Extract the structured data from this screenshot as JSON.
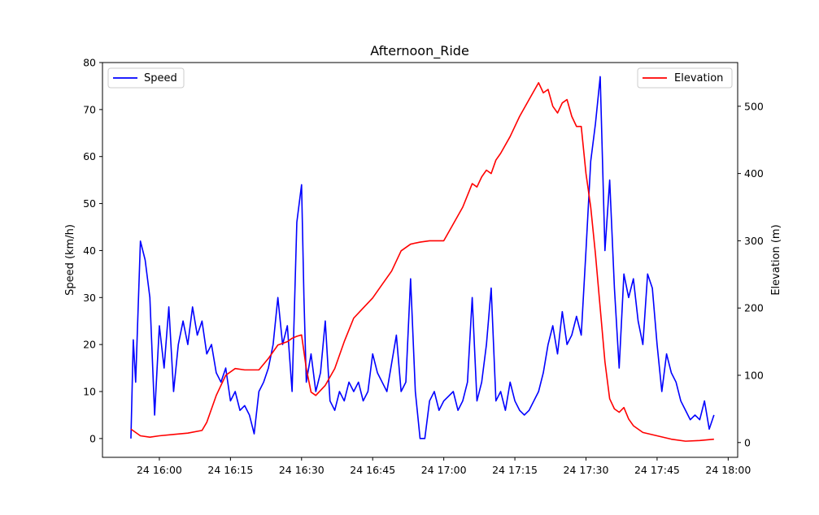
{
  "chart_data": {
    "type": "line",
    "title": "Afternoon_Ride",
    "xlabel": "",
    "ylabel_left": "Speed (km/h)",
    "ylabel_right": "Elevation (m)",
    "x_unit": "time",
    "xlim": [
      "24 15:48",
      "24 18:02"
    ],
    "xticks": [
      "24 16:00",
      "24 16:15",
      "24 16:30",
      "24 16:45",
      "24 17:00",
      "24 17:15",
      "24 17:30",
      "24 17:45",
      "24 18:00"
    ],
    "ylim_left": [
      -4,
      80
    ],
    "yticks_left": [
      0,
      10,
      20,
      30,
      40,
      50,
      60,
      70,
      80
    ],
    "ylim_right": [
      -22,
      565
    ],
    "yticks_right": [
      0,
      100,
      200,
      300,
      400,
      500
    ],
    "grid": false,
    "series": [
      {
        "name": "Speed",
        "axis": "left",
        "color": "#0000ff",
        "x": [
          "24 15:54",
          "24 15:54:30",
          "24 15:55",
          "24 15:56",
          "24 15:57",
          "24 15:58",
          "24 15:59",
          "24 16:00",
          "24 16:01",
          "24 16:02",
          "24 16:03",
          "24 16:04",
          "24 16:05",
          "24 16:06",
          "24 16:07",
          "24 16:08",
          "24 16:09",
          "24 16:10",
          "24 16:11",
          "24 16:12",
          "24 16:13",
          "24 16:14",
          "24 16:15",
          "24 16:16",
          "24 16:17",
          "24 16:18",
          "24 16:19",
          "24 16:20",
          "24 16:21",
          "24 16:22",
          "24 16:23",
          "24 16:24",
          "24 16:25",
          "24 16:26",
          "24 16:27",
          "24 16:28",
          "24 16:29",
          "24 16:30",
          "24 16:30:30",
          "24 16:31",
          "24 16:32",
          "24 16:33",
          "24 16:34",
          "24 16:35",
          "24 16:36",
          "24 16:37",
          "24 16:38",
          "24 16:39",
          "24 16:40",
          "24 16:41",
          "24 16:42",
          "24 16:43",
          "24 16:44",
          "24 16:45",
          "24 16:46",
          "24 16:47",
          "24 16:48",
          "24 16:49",
          "24 16:50",
          "24 16:51",
          "24 16:52",
          "24 16:53",
          "24 16:54",
          "24 16:55",
          "24 16:56",
          "24 16:57",
          "24 16:58",
          "24 16:59",
          "24 17:00",
          "24 17:01",
          "24 17:02",
          "24 17:03",
          "24 17:04",
          "24 17:05",
          "24 17:06",
          "24 17:07",
          "24 17:08",
          "24 17:09",
          "24 17:10",
          "24 17:11",
          "24 17:12",
          "24 17:13",
          "24 17:14",
          "24 17:15",
          "24 17:16",
          "24 17:17",
          "24 17:18",
          "24 17:19",
          "24 17:20",
          "24 17:21",
          "24 17:22",
          "24 17:23",
          "24 17:24",
          "24 17:25",
          "24 17:26",
          "24 17:27",
          "24 17:28",
          "24 17:29",
          "24 17:30",
          "24 17:31",
          "24 17:32",
          "24 17:33",
          "24 17:34",
          "24 17:35",
          "24 17:36",
          "24 17:37",
          "24 17:38",
          "24 17:39",
          "24 17:40",
          "24 17:41",
          "24 17:42",
          "24 17:43",
          "24 17:44",
          "24 17:45",
          "24 17:46",
          "24 17:47",
          "24 17:48",
          "24 17:49",
          "24 17:50",
          "24 17:51",
          "24 17:52",
          "24 17:53",
          "24 17:54",
          "24 17:55",
          "24 17:56",
          "24 17:57"
        ],
        "values": [
          0,
          21,
          12,
          42,
          38,
          30,
          5,
          24,
          15,
          28,
          10,
          20,
          25,
          20,
          28,
          22,
          25,
          18,
          20,
          14,
          12,
          15,
          8,
          10,
          6,
          7,
          5,
          1,
          10,
          12,
          15,
          20,
          30,
          20,
          24,
          10,
          46,
          54,
          30,
          12,
          18,
          10,
          14,
          25,
          8,
          6,
          10,
          8,
          12,
          10,
          12,
          8,
          10,
          18,
          14,
          12,
          10,
          16,
          22,
          10,
          12,
          34,
          10,
          0,
          0,
          8,
          10,
          6,
          8,
          9,
          10,
          6,
          8,
          12,
          30,
          8,
          12,
          20,
          32,
          8,
          10,
          6,
          12,
          8,
          6,
          5,
          6,
          8,
          10,
          14,
          20,
          24,
          18,
          27,
          20,
          22,
          26,
          22,
          40,
          59,
          67,
          77,
          40,
          55,
          32,
          15,
          35,
          30,
          34,
          25,
          20,
          35,
          32,
          20,
          10,
          18,
          14,
          12,
          8,
          6,
          4,
          5,
          4,
          8,
          2,
          5
        ]
      },
      {
        "name": "Elevation",
        "axis": "right",
        "color": "#ff0000",
        "x": [
          "24 15:54",
          "24 15:55",
          "24 15:56",
          "24 15:58",
          "24 16:00",
          "24 16:03",
          "24 16:06",
          "24 16:09",
          "24 16:10",
          "24 16:12",
          "24 16:14",
          "24 16:16",
          "24 16:18",
          "24 16:21",
          "24 16:23",
          "24 16:25",
          "24 16:27",
          "24 16:28",
          "24 16:29",
          "24 16:30",
          "24 16:31",
          "24 16:32",
          "24 16:33",
          "24 16:35",
          "24 16:37",
          "24 16:39",
          "24 16:41",
          "24 16:43",
          "24 16:45",
          "24 16:47",
          "24 16:49",
          "24 16:51",
          "24 16:53",
          "24 16:55",
          "24 16:57",
          "24 17:00",
          "24 17:02",
          "24 17:04",
          "24 17:06",
          "24 17:07",
          "24 17:08",
          "24 17:09",
          "24 17:10",
          "24 17:11",
          "24 17:12",
          "24 17:14",
          "24 17:16",
          "24 17:18",
          "24 17:20",
          "24 17:21",
          "24 17:22",
          "24 17:23",
          "24 17:24",
          "24 17:25",
          "24 17:26",
          "24 17:27",
          "24 17:28",
          "24 17:29",
          "24 17:30",
          "24 17:31",
          "24 17:32",
          "24 17:33",
          "24 17:34",
          "24 17:35",
          "24 17:36",
          "24 17:37",
          "24 17:38",
          "24 17:39",
          "24 17:40",
          "24 17:42",
          "24 17:45",
          "24 17:48",
          "24 17:51",
          "24 17:54",
          "24 17:57"
        ],
        "values": [
          20,
          15,
          10,
          8,
          10,
          12,
          14,
          18,
          30,
          70,
          100,
          110,
          108,
          108,
          125,
          145,
          150,
          155,
          158,
          160,
          110,
          75,
          70,
          85,
          110,
          150,
          185,
          200,
          215,
          235,
          255,
          285,
          295,
          298,
          300,
          300,
          325,
          350,
          385,
          380,
          395,
          405,
          400,
          420,
          430,
          455,
          485,
          510,
          535,
          520,
          525,
          500,
          490,
          505,
          510,
          485,
          470,
          470,
          400,
          350,
          280,
          200,
          120,
          65,
          50,
          45,
          52,
          35,
          25,
          15,
          10,
          5,
          2,
          3,
          5
        ]
      }
    ],
    "legend_left": {
      "label": "Speed",
      "placement": "upper-left"
    },
    "legend_right": {
      "label": "Elevation",
      "placement": "upper-right"
    }
  }
}
